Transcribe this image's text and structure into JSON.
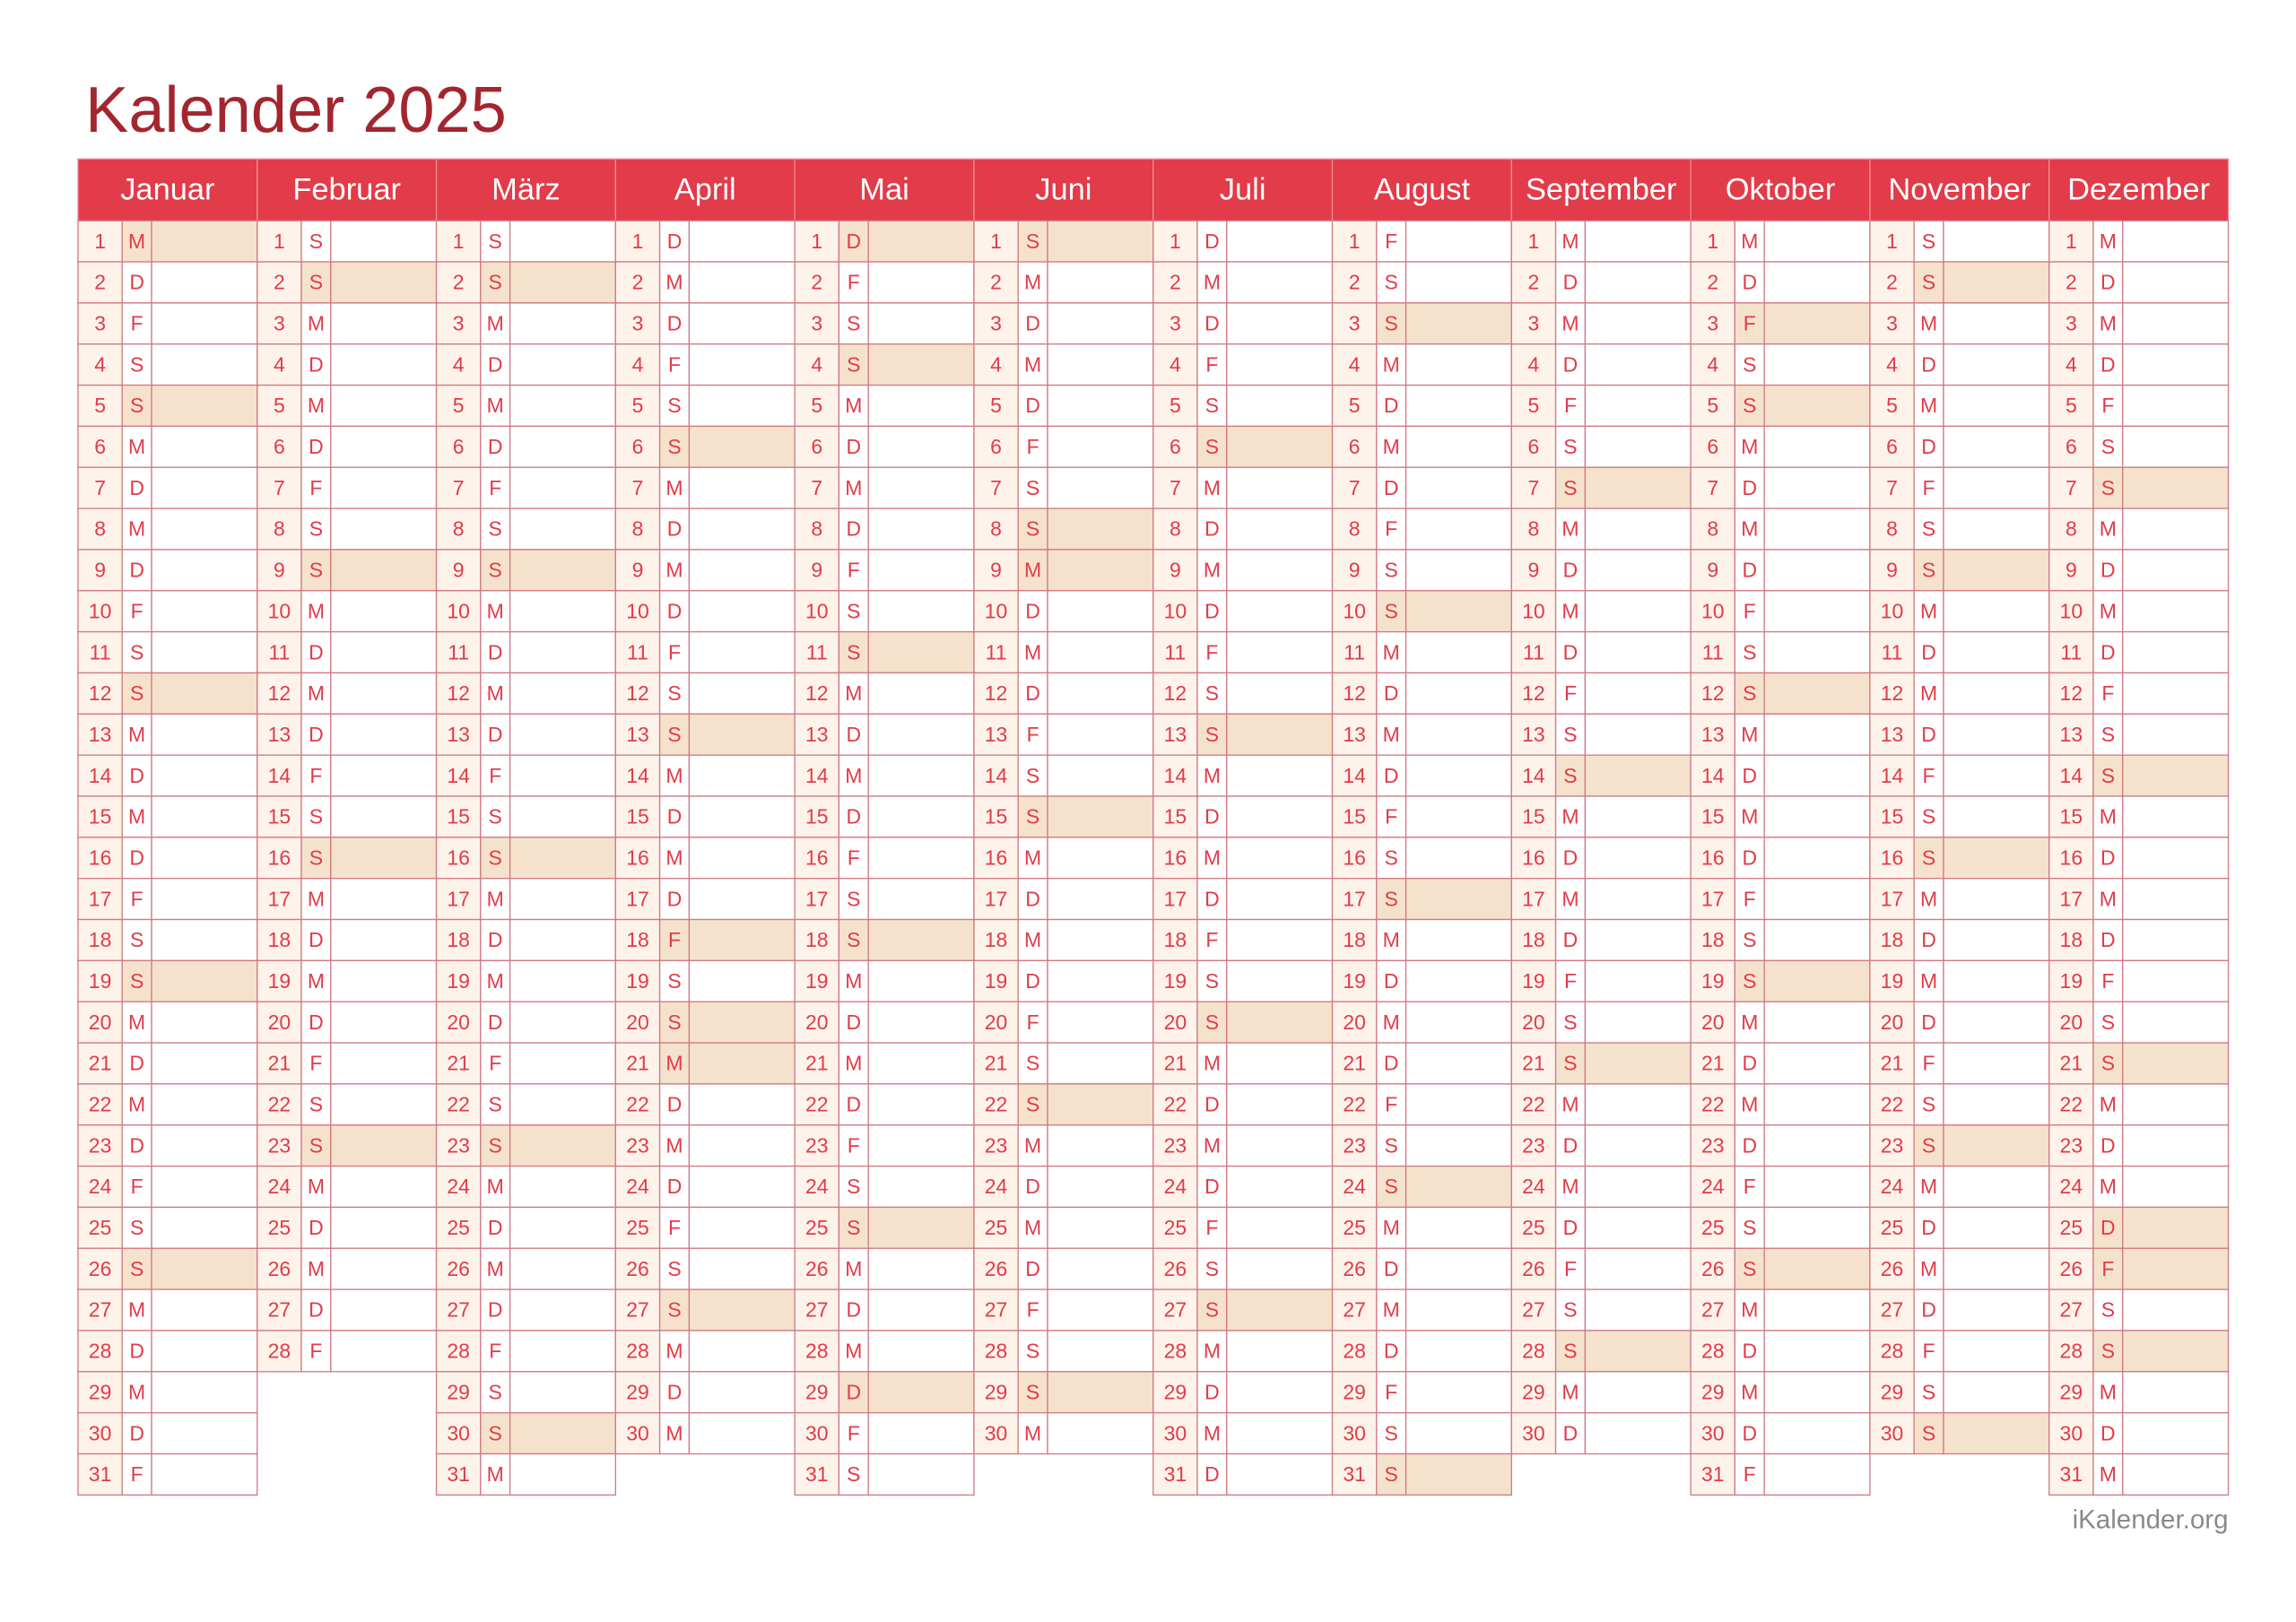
{
  "title": "Kalender 2025",
  "footer": "iKalender.org",
  "months": [
    {
      "name": "Januar",
      "days": [
        1,
        2,
        3,
        4,
        5,
        6,
        7,
        8,
        9,
        10,
        11,
        12,
        13,
        14,
        15,
        16,
        17,
        18,
        19,
        20,
        21,
        22,
        23,
        24,
        25,
        26,
        27,
        28,
        29,
        30,
        31
      ],
      "weekdays": [
        "M",
        "D",
        "F",
        "S",
        "S",
        "M",
        "D",
        "M",
        "D",
        "F",
        "S",
        "S",
        "M",
        "D",
        "M",
        "D",
        "F",
        "S",
        "S",
        "M",
        "D",
        "M",
        "D",
        "F",
        "S",
        "S",
        "M",
        "D",
        "M",
        "D",
        "F"
      ],
      "highlighted": [
        1,
        5,
        12,
        19,
        26
      ]
    },
    {
      "name": "Februar",
      "days": [
        1,
        2,
        3,
        4,
        5,
        6,
        7,
        8,
        9,
        10,
        11,
        12,
        13,
        14,
        15,
        16,
        17,
        18,
        19,
        20,
        21,
        22,
        23,
        24,
        25,
        26,
        27,
        28
      ],
      "weekdays": [
        "S",
        "S",
        "M",
        "D",
        "M",
        "D",
        "F",
        "S",
        "S",
        "M",
        "D",
        "M",
        "D",
        "F",
        "S",
        "S",
        "M",
        "D",
        "M",
        "D",
        "F",
        "S",
        "S",
        "M",
        "D",
        "M",
        "D",
        "F"
      ],
      "highlighted": [
        2,
        9,
        16,
        23
      ]
    },
    {
      "name": "März",
      "days": [
        1,
        2,
        3,
        4,
        5,
        6,
        7,
        8,
        9,
        10,
        11,
        12,
        13,
        14,
        15,
        16,
        17,
        18,
        19,
        20,
        21,
        22,
        23,
        24,
        25,
        26,
        27,
        28,
        29,
        30,
        31
      ],
      "weekdays": [
        "S",
        "S",
        "M",
        "D",
        "M",
        "D",
        "F",
        "S",
        "S",
        "M",
        "D",
        "M",
        "D",
        "F",
        "S",
        "S",
        "M",
        "D",
        "M",
        "D",
        "F",
        "S",
        "S",
        "M",
        "D",
        "M",
        "D",
        "F",
        "S",
        "S",
        "M"
      ],
      "highlighted": [
        2,
        9,
        16,
        23,
        30
      ]
    },
    {
      "name": "April",
      "days": [
        1,
        2,
        3,
        4,
        5,
        6,
        7,
        8,
        9,
        10,
        11,
        12,
        13,
        14,
        15,
        16,
        17,
        18,
        19,
        20,
        21,
        22,
        23,
        24,
        25,
        26,
        27,
        28,
        29,
        30
      ],
      "weekdays": [
        "D",
        "M",
        "D",
        "F",
        "S",
        "S",
        "M",
        "D",
        "M",
        "D",
        "F",
        "S",
        "S",
        "M",
        "D",
        "M",
        "D",
        "F",
        "S",
        "S",
        "M",
        "D",
        "M",
        "D",
        "F",
        "S",
        "S",
        "M",
        "D",
        "M"
      ],
      "highlighted": [
        6,
        13,
        18,
        20,
        21,
        27
      ]
    },
    {
      "name": "Mai",
      "days": [
        1,
        2,
        3,
        4,
        5,
        6,
        7,
        8,
        9,
        10,
        11,
        12,
        13,
        14,
        15,
        16,
        17,
        18,
        19,
        20,
        21,
        22,
        23,
        24,
        25,
        26,
        27,
        28,
        29,
        30,
        31
      ],
      "weekdays": [
        "D",
        "F",
        "S",
        "S",
        "M",
        "D",
        "M",
        "D",
        "F",
        "S",
        "S",
        "M",
        "D",
        "M",
        "D",
        "F",
        "S",
        "S",
        "M",
        "D",
        "M",
        "D",
        "F",
        "S",
        "S",
        "M",
        "D",
        "M",
        "D",
        "F",
        "S"
      ],
      "highlighted": [
        1,
        4,
        11,
        18,
        25,
        29
      ]
    },
    {
      "name": "Juni",
      "days": [
        1,
        2,
        3,
        4,
        5,
        6,
        7,
        8,
        9,
        10,
        11,
        12,
        13,
        14,
        15,
        16,
        17,
        18,
        19,
        20,
        21,
        22,
        23,
        24,
        25,
        26,
        27,
        28,
        29,
        30
      ],
      "weekdays": [
        "S",
        "M",
        "D",
        "M",
        "D",
        "F",
        "S",
        "S",
        "M",
        "D",
        "M",
        "D",
        "F",
        "S",
        "S",
        "M",
        "D",
        "M",
        "D",
        "F",
        "S",
        "S",
        "M",
        "D",
        "M",
        "D",
        "F",
        "S",
        "S",
        "M"
      ],
      "highlighted": [
        1,
        8,
        9,
        15,
        22,
        29
      ]
    },
    {
      "name": "Juli",
      "days": [
        1,
        2,
        3,
        4,
        5,
        6,
        7,
        8,
        9,
        10,
        11,
        12,
        13,
        14,
        15,
        16,
        17,
        18,
        19,
        20,
        21,
        22,
        23,
        24,
        25,
        26,
        27,
        28,
        29,
        30,
        31
      ],
      "weekdays": [
        "D",
        "M",
        "D",
        "F",
        "S",
        "S",
        "M",
        "D",
        "M",
        "D",
        "F",
        "S",
        "S",
        "M",
        "D",
        "M",
        "D",
        "F",
        "S",
        "S",
        "M",
        "D",
        "M",
        "D",
        "F",
        "S",
        "S",
        "M",
        "D",
        "M",
        "D"
      ],
      "highlighted": [
        6,
        13,
        20,
        27
      ]
    },
    {
      "name": "August",
      "days": [
        1,
        2,
        3,
        4,
        5,
        6,
        7,
        8,
        9,
        10,
        11,
        12,
        13,
        14,
        15,
        16,
        17,
        18,
        19,
        20,
        21,
        22,
        23,
        24,
        25,
        26,
        27,
        28,
        29,
        30,
        31
      ],
      "weekdays": [
        "F",
        "S",
        "S",
        "M",
        "D",
        "M",
        "D",
        "F",
        "S",
        "S",
        "M",
        "D",
        "M",
        "D",
        "F",
        "S",
        "S",
        "M",
        "D",
        "M",
        "D",
        "F",
        "S",
        "S",
        "M",
        "D",
        "M",
        "D",
        "F",
        "S",
        "S"
      ],
      "highlighted": [
        3,
        10,
        17,
        24,
        31
      ]
    },
    {
      "name": "September",
      "days": [
        1,
        2,
        3,
        4,
        5,
        6,
        7,
        8,
        9,
        10,
        11,
        12,
        13,
        14,
        15,
        16,
        17,
        18,
        19,
        20,
        21,
        22,
        23,
        24,
        25,
        26,
        27,
        28,
        29,
        30
      ],
      "weekdays": [
        "M",
        "D",
        "M",
        "D",
        "F",
        "S",
        "S",
        "M",
        "D",
        "M",
        "D",
        "F",
        "S",
        "S",
        "M",
        "D",
        "M",
        "D",
        "F",
        "S",
        "S",
        "M",
        "D",
        "M",
        "D",
        "F",
        "S",
        "S",
        "M",
        "D"
      ],
      "highlighted": [
        7,
        14,
        21,
        28
      ]
    },
    {
      "name": "Oktober",
      "days": [
        1,
        2,
        3,
        4,
        5,
        6,
        7,
        8,
        9,
        10,
        11,
        12,
        13,
        14,
        15,
        16,
        17,
        18,
        19,
        20,
        21,
        22,
        23,
        24,
        25,
        26,
        27,
        28,
        29,
        30,
        31
      ],
      "weekdays": [
        "M",
        "D",
        "F",
        "S",
        "S",
        "M",
        "D",
        "M",
        "D",
        "F",
        "S",
        "S",
        "M",
        "D",
        "M",
        "D",
        "F",
        "S",
        "S",
        "M",
        "D",
        "M",
        "D",
        "F",
        "S",
        "S",
        "M",
        "D",
        "M",
        "D",
        "F"
      ],
      "highlighted": [
        3,
        5,
        12,
        19,
        26
      ]
    },
    {
      "name": "November",
      "days": [
        1,
        2,
        3,
        4,
        5,
        6,
        7,
        8,
        9,
        10,
        11,
        12,
        13,
        14,
        15,
        16,
        17,
        18,
        19,
        20,
        21,
        22,
        23,
        24,
        25,
        26,
        27,
        28,
        29,
        30
      ],
      "weekdays": [
        "S",
        "S",
        "M",
        "D",
        "M",
        "D",
        "F",
        "S",
        "S",
        "M",
        "D",
        "M",
        "D",
        "F",
        "S",
        "S",
        "M",
        "D",
        "M",
        "D",
        "F",
        "S",
        "S",
        "M",
        "D",
        "M",
        "D",
        "F",
        "S",
        "S"
      ],
      "highlighted": [
        2,
        9,
        16,
        23,
        30
      ]
    },
    {
      "name": "Dezember",
      "days": [
        1,
        2,
        3,
        4,
        5,
        6,
        7,
        8,
        9,
        10,
        11,
        12,
        13,
        14,
        15,
        16,
        17,
        18,
        19,
        20,
        21,
        22,
        23,
        24,
        25,
        26,
        27,
        28,
        29,
        30,
        31
      ],
      "weekdays": [
        "M",
        "D",
        "M",
        "D",
        "F",
        "S",
        "S",
        "M",
        "D",
        "M",
        "D",
        "F",
        "S",
        "S",
        "M",
        "D",
        "M",
        "D",
        "F",
        "S",
        "S",
        "M",
        "D",
        "M",
        "D",
        "F",
        "S",
        "S",
        "M",
        "D",
        "M"
      ],
      "highlighted": [
        7,
        14,
        21,
        25,
        26,
        28
      ]
    }
  ]
}
